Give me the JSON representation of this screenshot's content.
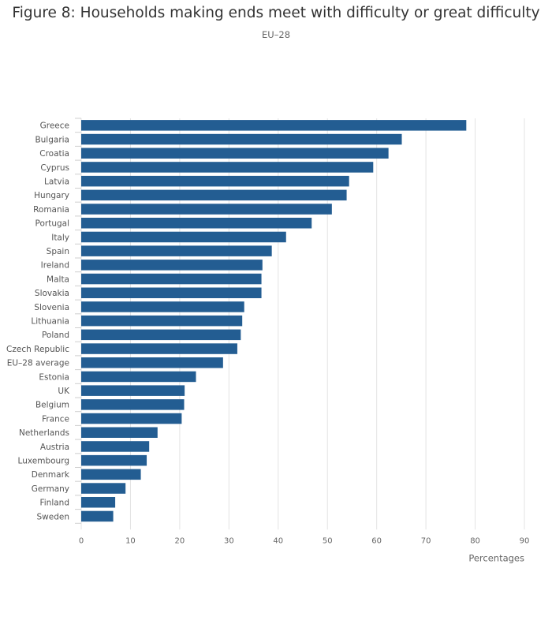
{
  "chart_data": {
    "type": "bar",
    "orientation": "horizontal",
    "title": "Figure 8: Households making ends meet with difficulty or great difficulty",
    "subtitle": "EU–28",
    "xlabel": "Percentages",
    "ylabel": "",
    "xlim": [
      0,
      90
    ],
    "x_ticks": [
      0,
      10,
      20,
      30,
      40,
      50,
      60,
      70,
      80,
      90
    ],
    "grid": true,
    "categories": [
      "Greece",
      "Bulgaria",
      "Croatia",
      "Cyprus",
      "Latvia",
      "Hungary",
      "Romania",
      "Portugal",
      "Italy",
      "Spain",
      "Ireland",
      "Malta",
      "Slovakia",
      "Slovenia",
      "Lithuania",
      "Poland",
      "Czech Republic",
      "EU–28 average",
      "Estonia",
      "UK",
      "Belgium",
      "France",
      "Netherlands",
      "Austria",
      "Luxembourg",
      "Denmark",
      "Germany",
      "Finland",
      "Sweden"
    ],
    "values": [
      78.2,
      65.1,
      62.4,
      59.3,
      54.4,
      53.9,
      50.9,
      46.8,
      41.6,
      38.7,
      36.8,
      36.6,
      36.6,
      33.1,
      32.7,
      32.4,
      31.7,
      28.8,
      23.3,
      21.0,
      20.9,
      20.4,
      15.5,
      13.8,
      13.3,
      12.1,
      9.0,
      6.9,
      6.5
    ],
    "bar_color": "#235d92",
    "grid_color": "#e3e3e3"
  }
}
